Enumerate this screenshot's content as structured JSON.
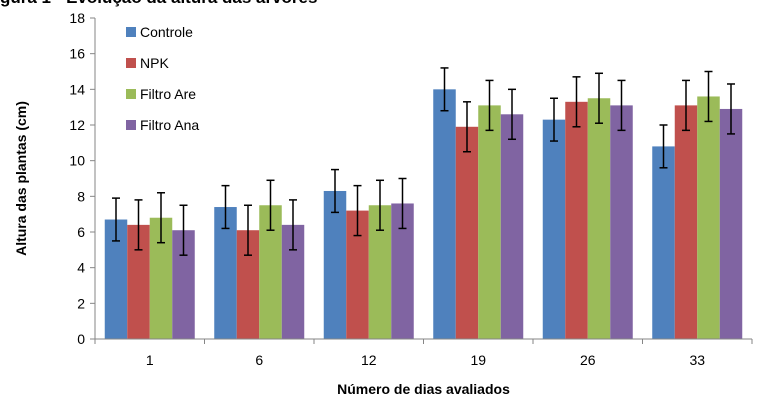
{
  "chart_data": {
    "type": "bar",
    "title": "gura 1 - Evolução da altura das árvores",
    "xlabel": "Número de dias avaliados",
    "ylabel": "Altura das plantas (cm)",
    "ylim": [
      0,
      18
    ],
    "yticks": [
      0,
      2,
      4,
      6,
      8,
      10,
      12,
      14,
      16,
      18
    ],
    "grid": false,
    "legend_position": "top-left",
    "categories": [
      "1",
      "6",
      "12",
      "19",
      "26",
      "33"
    ],
    "series": [
      {
        "name": "Controle",
        "color": "#4F81BD",
        "values": [
          6.7,
          7.4,
          8.3,
          14.0,
          12.3,
          10.8
        ],
        "errors": [
          1.2,
          1.2,
          1.2,
          1.2,
          1.2,
          1.2
        ]
      },
      {
        "name": "NPK",
        "color": "#C0504D",
        "values": [
          6.4,
          6.1,
          7.2,
          11.9,
          13.3,
          13.1
        ],
        "errors": [
          1.4,
          1.4,
          1.4,
          1.4,
          1.4,
          1.4
        ]
      },
      {
        "name": "Filtro Are",
        "color": "#9BBB59",
        "values": [
          6.8,
          7.5,
          7.5,
          13.1,
          13.5,
          13.6
        ],
        "errors": [
          1.4,
          1.4,
          1.4,
          1.4,
          1.4,
          1.4
        ]
      },
      {
        "name": "Filtro Ana",
        "color": "#8064A2",
        "values": [
          6.1,
          6.4,
          7.6,
          12.6,
          13.1,
          12.9
        ],
        "errors": [
          1.4,
          1.4,
          1.4,
          1.4,
          1.4,
          1.4
        ]
      }
    ]
  }
}
